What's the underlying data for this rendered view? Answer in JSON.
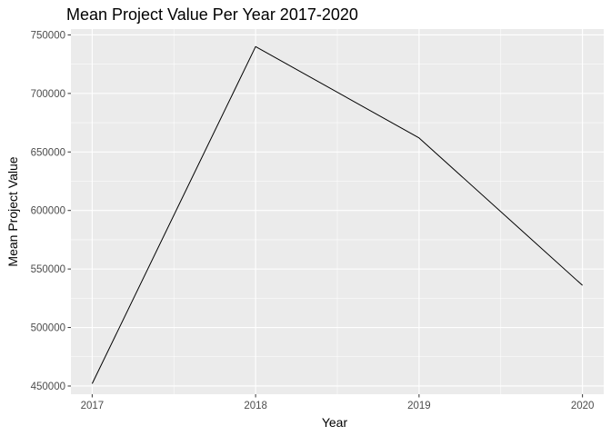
{
  "chart_data": {
    "type": "line",
    "title": "Mean Project Value Per Year 2017-2020",
    "xlabel": "Year",
    "ylabel": "Mean Project Value",
    "x": [
      2017,
      2018,
      2019,
      2020
    ],
    "xlim": [
      2016.87,
      2020.13
    ],
    "x_ticks": [
      2017,
      2018,
      2019,
      2020
    ],
    "y_ticks": [
      450000,
      500000,
      550000,
      600000,
      650000,
      700000,
      750000
    ],
    "y_tick_labels": [
      "450000",
      "500000",
      "550000",
      "600000",
      "650000",
      "700000",
      "750000"
    ],
    "ylim": [
      443000,
      755000
    ],
    "series": [
      {
        "values": [
          452000,
          740000,
          662000,
          536000
        ],
        "color": "#000000"
      }
    ],
    "grid": true,
    "panel_background": "#ebebeb",
    "grid_color": "#ffffff",
    "legend": "none"
  }
}
